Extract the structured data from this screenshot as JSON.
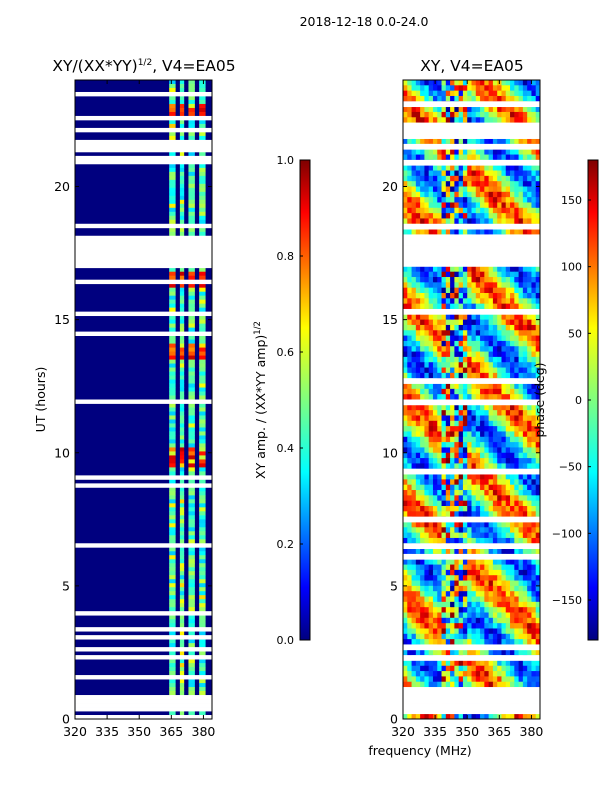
{
  "figure_title": "2018-12-18 0.0-24.0",
  "colors": {
    "jet": [
      "#00007f",
      "#0000ff",
      "#007fff",
      "#00ffff",
      "#7fff7f",
      "#ffff00",
      "#ff7f00",
      "#ff0000",
      "#7f0000"
    ],
    "background": "#00007f",
    "frame": "#000000"
  },
  "chart_data": [
    {
      "type": "heatmap",
      "title_main": "XY/(XX*YY)",
      "title_sup": "1/2",
      "title_suffix": ", V4=EA05",
      "xlabel": "",
      "ylabel": "UT (hours)",
      "xlim": [
        320,
        384
      ],
      "ylim": [
        0,
        24
      ],
      "xticks": [
        "320",
        "335",
        "350",
        "365",
        "380"
      ],
      "xtick_values": [
        320,
        335,
        350,
        365,
        380
      ],
      "yticks": [
        "0",
        "5",
        "10",
        "15",
        "20"
      ],
      "ytick_values": [
        0,
        5,
        10,
        15,
        20
      ],
      "bright_channel_bands_mhz": [
        [
          364,
          367
        ],
        [
          369,
          371
        ],
        [
          373,
          376
        ],
        [
          378,
          381
        ]
      ],
      "peak_hours": [
        9.8,
        13.8,
        16.5,
        22.8
      ],
      "colorbar": {
        "label_main": "XY amp. / (XX*YY amp)",
        "label_sup": "1/2",
        "range": [
          0.0,
          1.0
        ],
        "ticks": [
          "0.0",
          "0.2",
          "0.4",
          "0.6",
          "0.8",
          "1.0"
        ],
        "tick_values": [
          0.0,
          0.2,
          0.4,
          0.6,
          0.8,
          1.0
        ]
      }
    },
    {
      "type": "heatmap",
      "title": "XY, V4=EA05",
      "xlabel": "frequency (MHz)",
      "ylabel": "",
      "xlim": [
        320,
        384
      ],
      "ylim": [
        0,
        24
      ],
      "xticks": [
        "320",
        "335",
        "350",
        "365",
        "380"
      ],
      "xtick_values": [
        320,
        335,
        350,
        365,
        380
      ],
      "yticks": [
        "0",
        "5",
        "10",
        "15",
        "20"
      ],
      "ytick_values": [
        0,
        5,
        10,
        15,
        20
      ],
      "colorbar": {
        "label": "phase (deg)",
        "range": [
          -180,
          180
        ],
        "ticks": [
          "−150",
          "−100",
          "−50",
          "0",
          "50",
          "100",
          "150"
        ],
        "tick_values": [
          -150,
          -100,
          -50,
          0,
          50,
          100,
          150
        ]
      }
    }
  ],
  "flagged_gaps_hours": [
    [
      0.0,
      0.1
    ],
    [
      0.3,
      0.95
    ],
    [
      1.05,
      1.12
    ],
    [
      1.55,
      1.62
    ],
    [
      2.3,
      2.42
    ],
    [
      2.55,
      2.75
    ],
    [
      3.05,
      3.1
    ],
    [
      3.35,
      3.4
    ],
    [
      3.9,
      3.98
    ],
    [
      4.05,
      4.1
    ],
    [
      4.45,
      4.5
    ],
    [
      4.95,
      5.0
    ],
    [
      6.1,
      6.15
    ],
    [
      6.5,
      6.55
    ],
    [
      7.5,
      7.55
    ],
    [
      7.78,
      7.85
    ],
    [
      8.05,
      8.1
    ],
    [
      8.35,
      8.4
    ],
    [
      8.55,
      8.6
    ],
    [
      8.75,
      8.85
    ],
    [
      9.05,
      9.1
    ],
    [
      9.3,
      9.35
    ],
    [
      9.55,
      9.6
    ],
    [
      10.15,
      10.2
    ],
    [
      10.45,
      10.5
    ],
    [
      10.75,
      10.8
    ],
    [
      11.65,
      11.7
    ],
    [
      11.8,
      11.95
    ],
    [
      12.7,
      12.75
    ],
    [
      13.0,
      13.05
    ],
    [
      13.35,
      13.4
    ],
    [
      14.25,
      14.3
    ],
    [
      14.45,
      14.5
    ],
    [
      14.85,
      14.9
    ],
    [
      15.2,
      15.35
    ],
    [
      15.45,
      15.5
    ],
    [
      15.55,
      15.62
    ],
    [
      15.75,
      15.8
    ],
    [
      16.05,
      16.1
    ],
    [
      16.4,
      16.45
    ],
    [
      16.95,
      18.2
    ],
    [
      18.5,
      18.55
    ],
    [
      19.75,
      19.8
    ],
    [
      20.9,
      20.95
    ],
    [
      21.05,
      21.1
    ],
    [
      21.35,
      21.7
    ],
    [
      21.9,
      21.95
    ],
    [
      22.1,
      22.15
    ],
    [
      22.3,
      22.35
    ],
    [
      22.55,
      22.6
    ],
    [
      22.75,
      22.8
    ],
    [
      23.05,
      23.12
    ],
    [
      23.45,
      23.5
    ]
  ]
}
